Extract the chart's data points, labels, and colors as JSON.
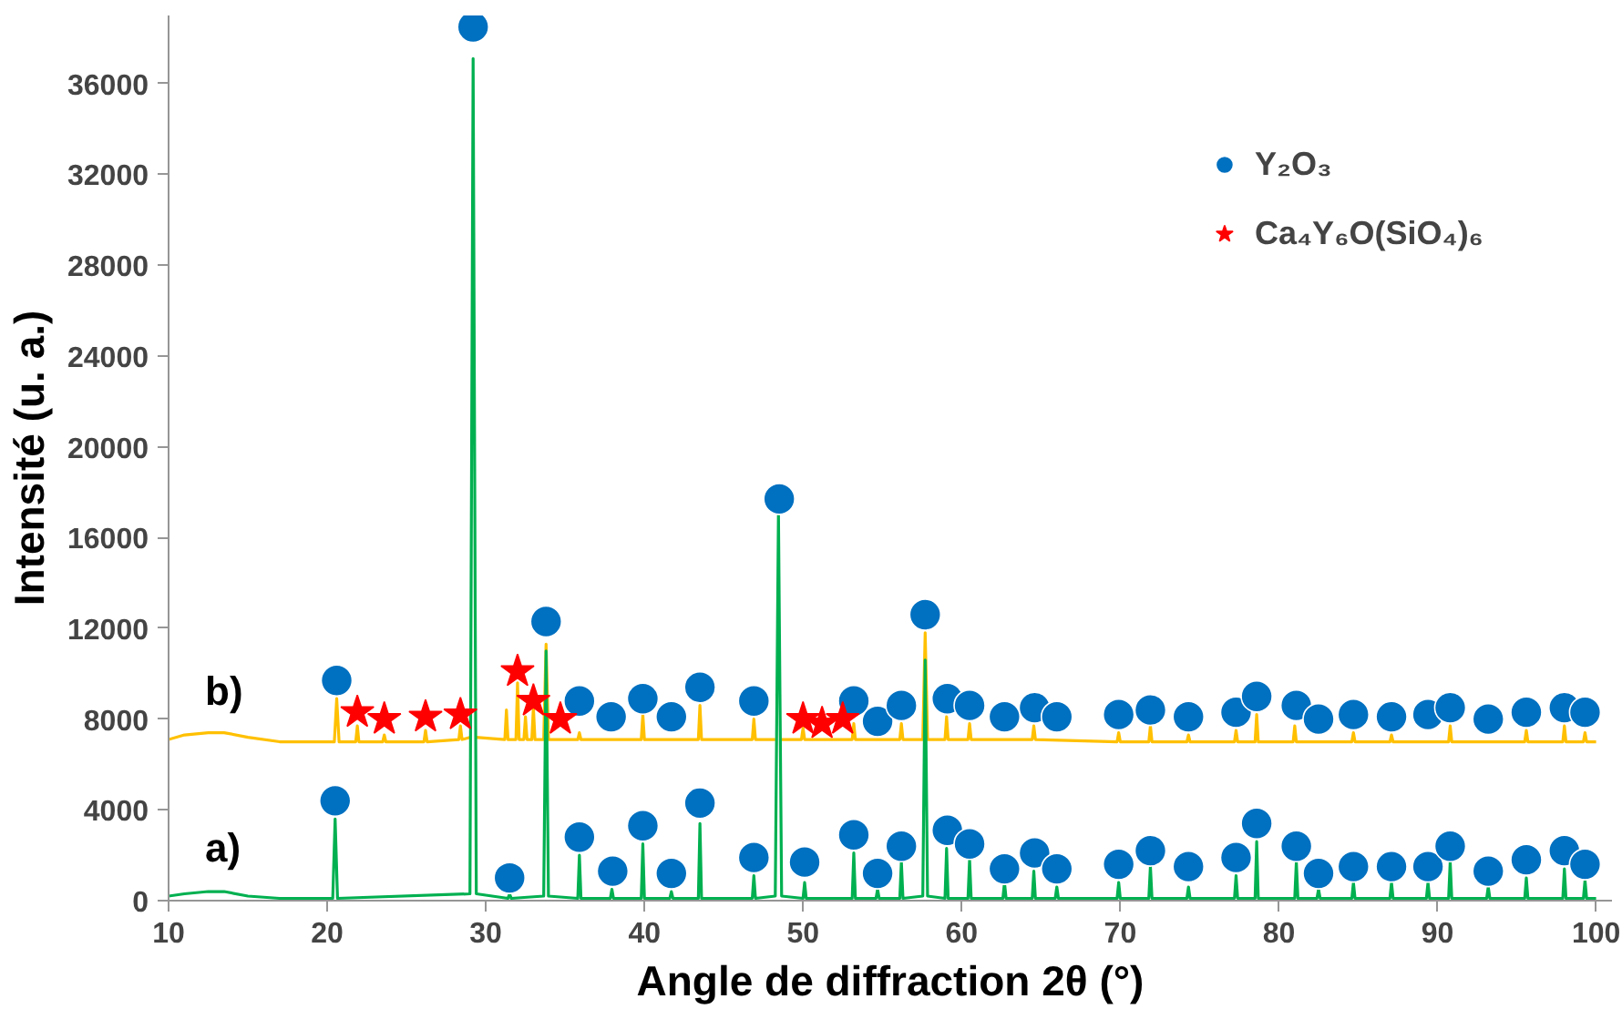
{
  "chart_data": {
    "type": "line",
    "xlabel": "Angle de diffraction 2θ (°)",
    "ylabel": "Intensité (u. a.)",
    "xlim": [
      10,
      101
    ],
    "ylim": [
      0,
      39000
    ],
    "xticks": [
      10,
      20,
      30,
      40,
      50,
      60,
      70,
      80,
      90,
      100
    ],
    "yticks": [
      0,
      4000,
      8000,
      12000,
      16000,
      20000,
      24000,
      28000,
      32000,
      36000
    ],
    "legend": "top right",
    "annotations": [
      "b)",
      "a)"
    ],
    "series": [
      {
        "color": "#ffc000",
        "x": [
          10,
          11,
          12.5,
          13.5,
          15,
          17,
          20.45,
          20.6,
          20.75,
          21.8,
          21.9,
          22.0,
          23.5,
          23.6,
          23.7,
          26.1,
          26.2,
          26.3,
          28.3,
          28.4,
          28.5,
          29.05,
          29.2,
          29.35,
          31.2,
          31.3,
          31.4,
          31.9,
          32.0,
          32.1,
          32.4,
          32.5,
          32.6,
          32.9,
          33.0,
          33.1,
          33.65,
          33.8,
          33.95,
          35.8,
          35.9,
          36.0,
          39.8,
          39.9,
          40.0,
          43.4,
          43.5,
          43.6,
          46.8,
          46.9,
          47.0,
          48.25,
          48.45,
          48.65,
          49.9,
          50.0,
          50.1,
          53.1,
          53.2,
          53.3,
          56.1,
          56.2,
          56.3,
          57.55,
          57.7,
          57.85,
          58.95,
          59.05,
          59.15,
          60.4,
          60.5,
          60.6,
          64.45,
          64.55,
          64.65,
          69.8,
          69.9,
          70.0,
          71.8,
          71.9,
          72.0,
          74.2,
          74.3,
          74.4,
          77.2,
          77.3,
          77.4,
          78.5,
          78.6,
          78.7,
          80.9,
          81.0,
          81.1,
          84.6,
          84.7,
          84.8,
          87.0,
          87.1,
          87.2,
          90.7,
          90.8,
          90.9,
          95.5,
          95.6,
          95.7,
          97.9,
          98.0,
          98.1,
          99.2,
          99.3,
          99.4,
          100
        ],
        "values": [
          7100,
          7300,
          7400,
          7400,
          7200,
          7000,
          7000,
          8900,
          7000,
          7000,
          7700,
          7000,
          7000,
          7300,
          7000,
          7000,
          7500,
          7000,
          7100,
          7700,
          7100,
          7200,
          null,
          7200,
          7100,
          8400,
          7100,
          7100,
          9600,
          7100,
          7100,
          8100,
          7100,
          7100,
          8500,
          7100,
          7100,
          11300,
          7100,
          7100,
          7400,
          7100,
          7100,
          8200,
          7100,
          7100,
          8600,
          7100,
          7100,
          8000,
          7100,
          7100,
          null,
          7100,
          7100,
          7600,
          7100,
          7100,
          7800,
          7100,
          7100,
          7800,
          7100,
          7100,
          11800,
          7100,
          7100,
          8100,
          7100,
          7100,
          7800,
          7100,
          7100,
          7700,
          7100,
          7000,
          7400,
          7000,
          7000,
          7700,
          7000,
          7000,
          7300,
          7000,
          7000,
          7500,
          7000,
          7000,
          8200,
          7000,
          7000,
          7700,
          7000,
          7000,
          7400,
          7000,
          7000,
          7300,
          7000,
          7000,
          7700,
          7000,
          7000,
          7500,
          7000,
          7000,
          7700,
          7000,
          7000,
          7400,
          7000,
          7000
        ]
      },
      {
        "color": "#00b050",
        "x": [
          10,
          11,
          12.5,
          13.5,
          15,
          17,
          20.35,
          20.5,
          20.65,
          29.0,
          29.2,
          29.4,
          31.4,
          31.5,
          31.6,
          33.65,
          33.8,
          33.95,
          35.8,
          35.9,
          36.0,
          37.85,
          37.95,
          38.05,
          39.8,
          39.9,
          40.0,
          41.6,
          41.7,
          41.8,
          43.4,
          43.5,
          43.6,
          46.8,
          46.9,
          47.0,
          48.25,
          48.45,
          48.65,
          50.0,
          50.1,
          50.2,
          53.1,
          53.2,
          53.3,
          54.6,
          54.7,
          54.8,
          56.1,
          56.2,
          56.3,
          57.55,
          57.7,
          57.85,
          58.95,
          59.05,
          59.15,
          60.4,
          60.5,
          60.6,
          62.6,
          62.7,
          62.8,
          64.45,
          64.55,
          64.65,
          65.9,
          66.0,
          66.1,
          69.8,
          69.9,
          70.0,
          71.8,
          71.9,
          72.0,
          74.2,
          74.3,
          74.4,
          77.2,
          77.3,
          77.4,
          78.5,
          78.6,
          78.7,
          81.0,
          81.1,
          81.2,
          82.4,
          82.5,
          82.6,
          84.6,
          84.7,
          84.8,
          87.0,
          87.1,
          87.2,
          89.3,
          89.4,
          89.5,
          90.7,
          90.8,
          90.9,
          93.1,
          93.2,
          93.3,
          95.5,
          95.6,
          95.7,
          97.9,
          98.0,
          98.1,
          99.2,
          99.3,
          99.4,
          100
        ],
        "values": [
          200,
          300,
          400,
          400,
          200,
          100,
          100,
          3600,
          100,
          300,
          37100,
          300,
          100,
          300,
          100,
          200,
          11000,
          200,
          100,
          2000,
          100,
          100,
          500,
          100,
          100,
          2500,
          100,
          100,
          400,
          100,
          100,
          3400,
          100,
          100,
          1100,
          100,
          200,
          17100,
          200,
          100,
          800,
          100,
          100,
          2100,
          100,
          100,
          500,
          100,
          100,
          1700,
          100,
          200,
          10600,
          200,
          100,
          2300,
          100,
          100,
          1800,
          100,
          100,
          800,
          100,
          100,
          1300,
          100,
          100,
          600,
          100,
          100,
          800,
          100,
          100,
          1500,
          100,
          100,
          600,
          100,
          100,
          1100,
          100,
          100,
          2600,
          100,
          100,
          1700,
          100,
          100,
          500,
          100,
          100,
          800,
          100,
          100,
          800,
          100,
          100,
          800,
          100,
          100,
          1700,
          100,
          100,
          600,
          100,
          100,
          1000,
          100,
          100,
          1400,
          100,
          100,
          900,
          100,
          100
        ]
      },
      {
        "type": "scatter",
        "name": "Y₂O₃",
        "color": "#0070c0",
        "marker": "circle",
        "x": [
          20.6,
          33.8,
          35.9,
          37.9,
          39.9,
          41.7,
          43.5,
          46.9,
          53.2,
          54.7,
          56.2,
          57.7,
          59.1,
          60.5,
          62.7,
          64.6,
          66.0,
          69.9,
          71.9,
          74.3,
          77.3,
          78.6,
          81.1,
          82.5,
          84.7,
          87.1,
          89.4,
          90.8,
          93.2,
          95.6,
          98.0,
          99.3,
          20.5,
          29.2,
          31.5,
          35.9,
          38.0,
          39.9,
          41.7,
          43.5,
          46.9,
          48.5,
          50.1,
          53.2,
          54.7,
          56.2,
          59.1,
          60.5,
          62.7,
          64.6,
          66.0,
          69.9,
          71.9,
          74.3,
          77.3,
          78.6,
          81.1,
          82.5,
          84.7,
          87.1,
          89.4,
          90.8,
          93.2,
          95.6,
          98.0,
          99.3
        ],
        "values": [
          9700,
          12300,
          8800,
          8100,
          8900,
          8100,
          9400,
          8800,
          8800,
          7900,
          8600,
          12600,
          8900,
          8600,
          8100,
          8500,
          8100,
          8200,
          8400,
          8100,
          8300,
          9000,
          8600,
          8000,
          8200,
          8100,
          8200,
          8500,
          8000,
          8300,
          8500,
          8300,
          4400,
          38500,
          1000,
          2800,
          1300,
          3300,
          1200,
          4300,
          1900,
          17700,
          1700,
          2900,
          1200,
          2400,
          3100,
          2500,
          1400,
          2100,
          1400,
          1600,
          2200,
          1500,
          1900,
          3400,
          2400,
          1200,
          1500,
          1500,
          1500,
          2400,
          1300,
          1800,
          2200,
          1600
        ]
      },
      {
        "type": "scatter",
        "name": "Ca₄Y₆O(SiO₄)₆",
        "color": "#ff0000",
        "marker": "star",
        "x": [
          21.9,
          23.6,
          26.2,
          28.4,
          32.0,
          33.0,
          34.7,
          50.0,
          51.2,
          52.5
        ],
        "values": [
          8300,
          8000,
          8100,
          8200,
          10100,
          8800,
          8000,
          8000,
          7800,
          8000
        ]
      }
    ]
  }
}
